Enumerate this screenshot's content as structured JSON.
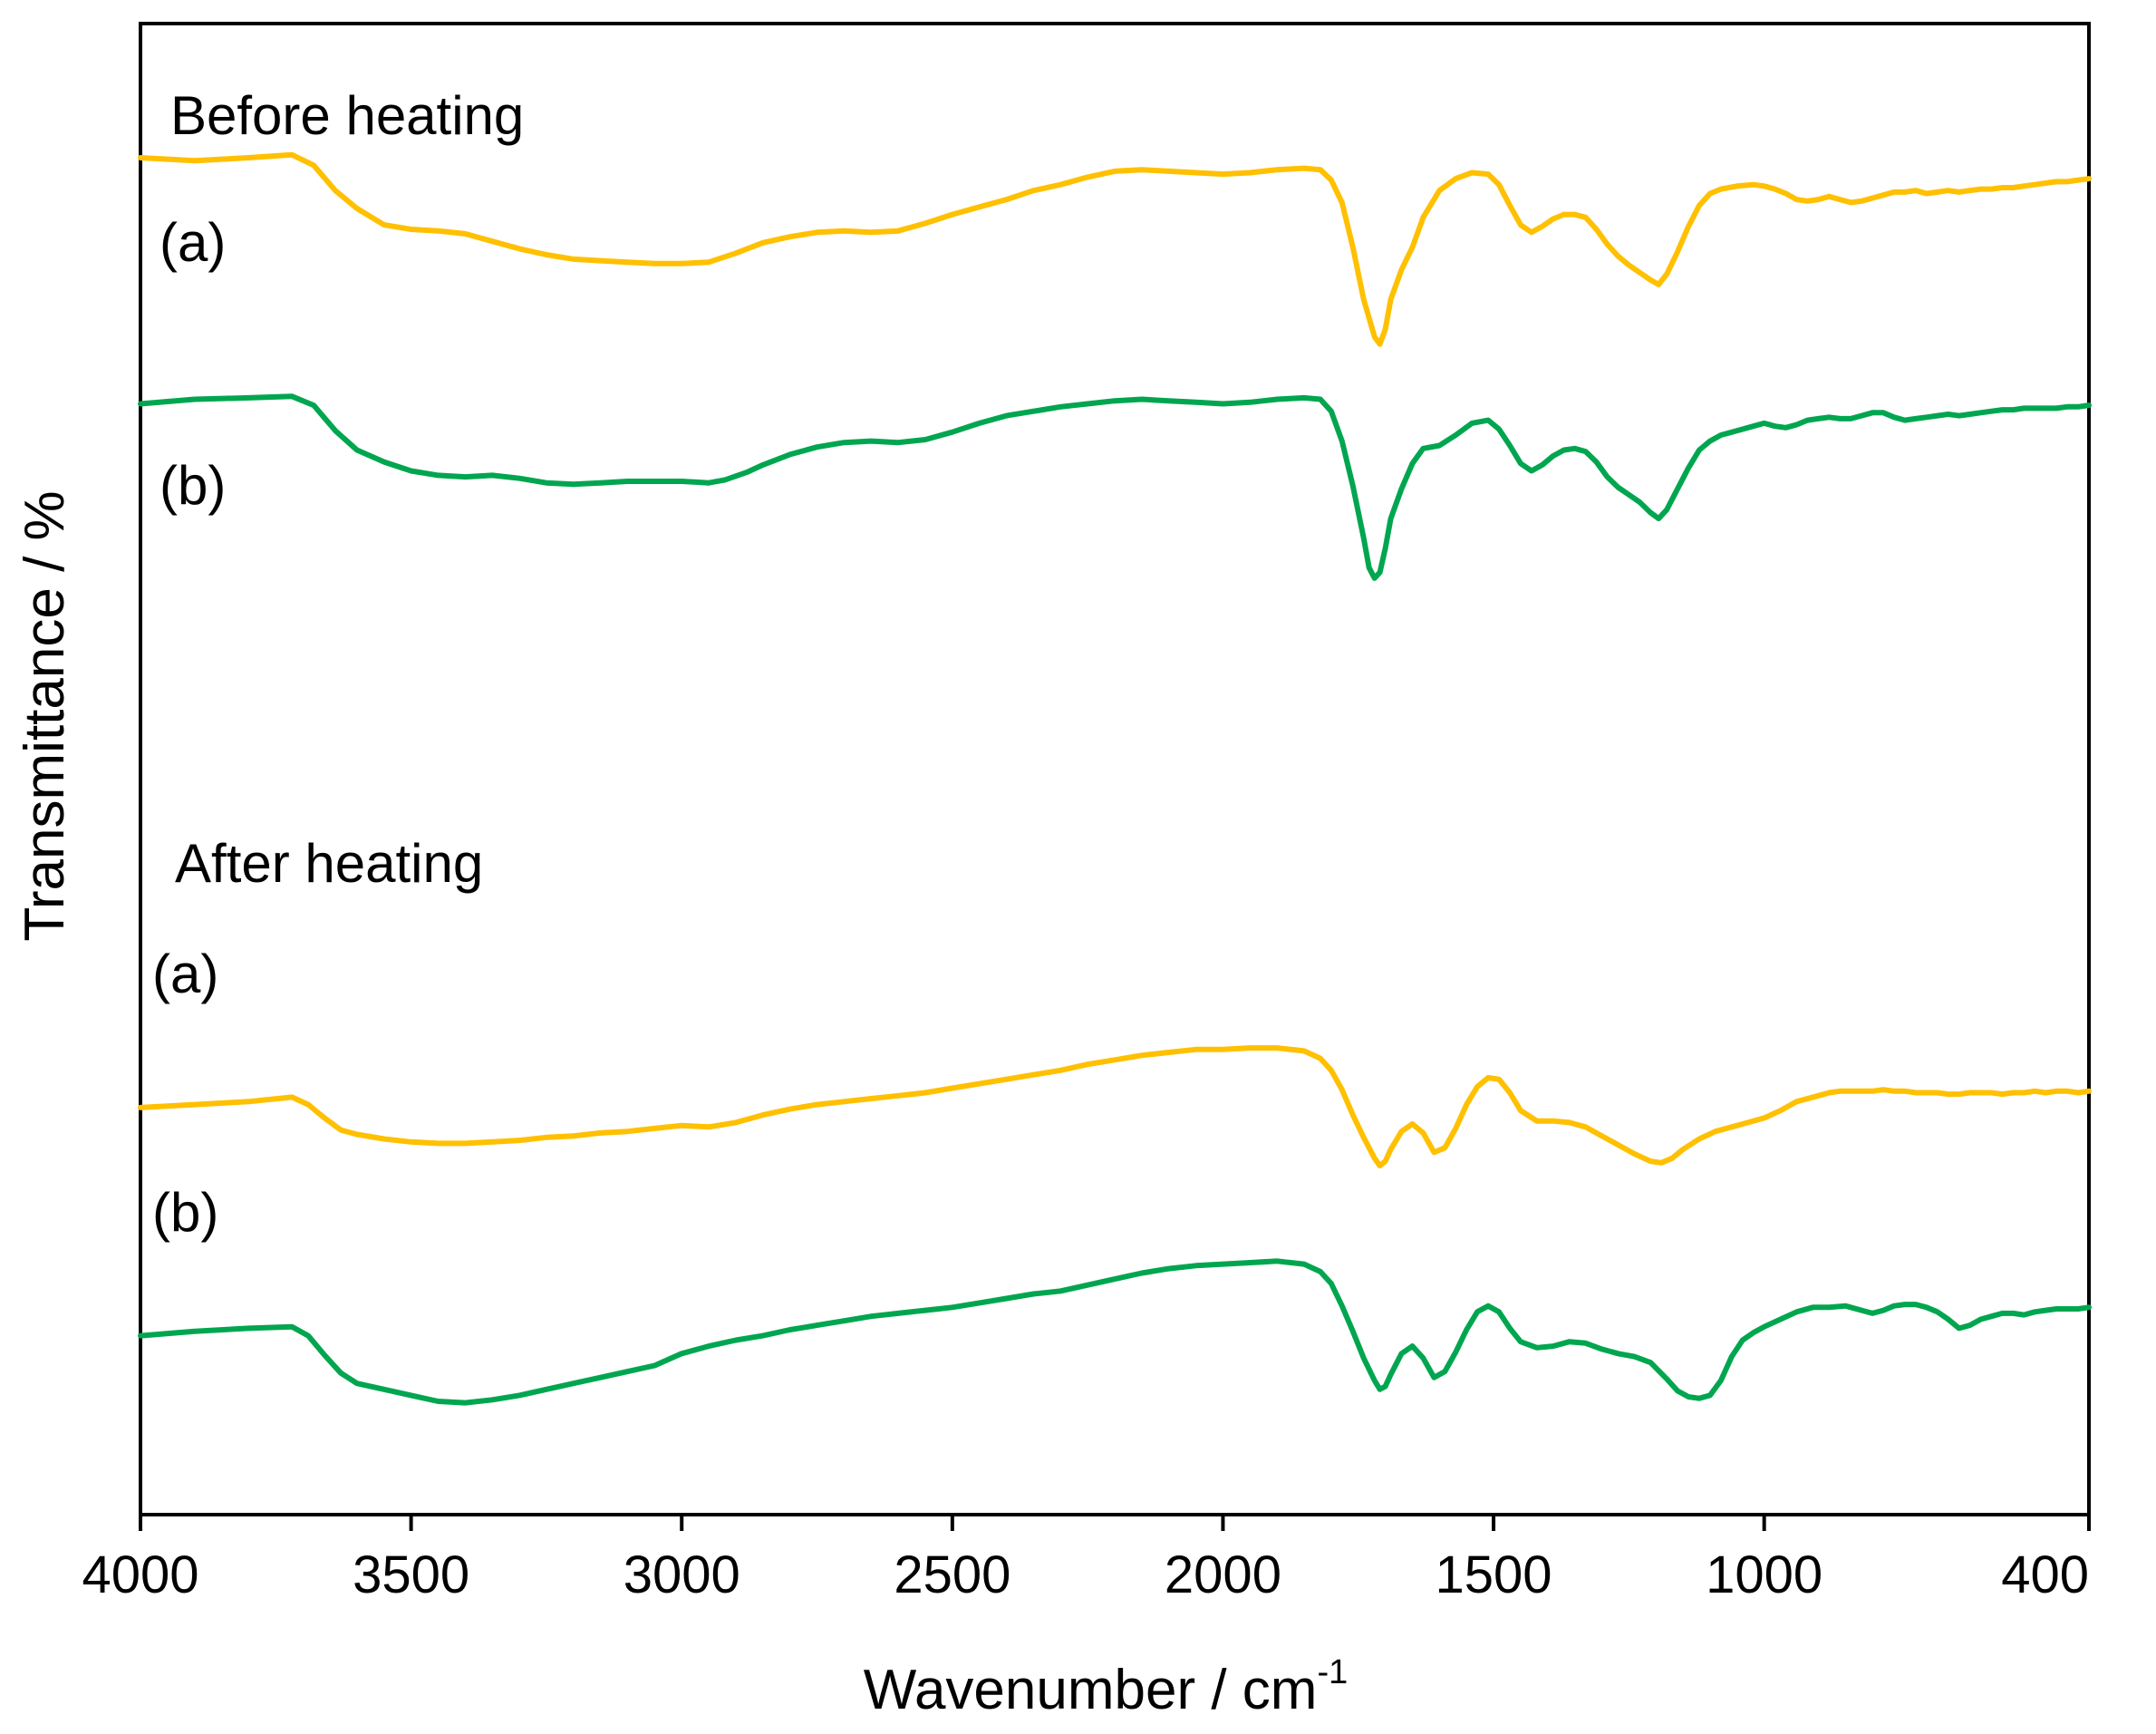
{
  "chart_data": {
    "type": "line",
    "title": "",
    "xlabel": "Wavenumber / cm",
    "xlabel_superscript": "-1",
    "ylabel": "Transmittance / %",
    "xlim": [
      4000,
      400
    ],
    "ylim": [
      0,
      100
    ],
    "x_ticks": [
      4000,
      3500,
      3000,
      2500,
      2000,
      1500,
      1000,
      400
    ],
    "x_tick_labels": [
      "4000",
      "3500",
      "3000",
      "2500",
      "2000",
      "1500",
      "1000",
      "400"
    ],
    "grid": false,
    "legend": "none",
    "annotations": {
      "before_heading": "Before heating",
      "after_heading": "After heating",
      "before_a": "(a)",
      "before_b": "(b)",
      "after_a": "(a)",
      "after_b": "(b)"
    },
    "series": [
      {
        "name": "Before heating (a)",
        "color": "#FFC000",
        "x": [
          4000,
          3900,
          3800,
          3720,
          3680,
          3640,
          3600,
          3550,
          3500,
          3450,
          3400,
          3350,
          3300,
          3250,
          3200,
          3150,
          3100,
          3050,
          3000,
          2950,
          2900,
          2850,
          2800,
          2750,
          2700,
          2650,
          2600,
          2550,
          2500,
          2450,
          2400,
          2350,
          2300,
          2250,
          2200,
          2150,
          2100,
          2050,
          2000,
          1950,
          1900,
          1850,
          1820,
          1800,
          1780,
          1760,
          1740,
          1720,
          1710,
          1700,
          1690,
          1670,
          1650,
          1630,
          1600,
          1570,
          1540,
          1510,
          1490,
          1470,
          1450,
          1430,
          1410,
          1390,
          1370,
          1350,
          1330,
          1310,
          1290,
          1270,
          1250,
          1230,
          1210,
          1195,
          1180,
          1160,
          1140,
          1120,
          1100,
          1080,
          1050,
          1020,
          1000,
          980,
          960,
          940,
          920,
          900,
          880,
          860,
          840,
          820,
          800,
          780,
          760,
          740,
          720,
          700,
          680,
          660,
          640,
          620,
          600,
          580,
          560,
          540,
          520,
          500,
          480,
          460,
          440,
          420,
          400
        ],
        "y": [
          91.0,
          90.8,
          91.0,
          91.2,
          90.5,
          88.8,
          87.6,
          86.5,
          86.2,
          86.1,
          85.9,
          85.4,
          84.9,
          84.5,
          84.2,
          84.1,
          84.0,
          83.9,
          83.9,
          84.0,
          84.6,
          85.3,
          85.7,
          86.0,
          86.1,
          86.0,
          86.1,
          86.6,
          87.2,
          87.7,
          88.2,
          88.8,
          89.2,
          89.7,
          90.1,
          90.2,
          90.1,
          90.0,
          89.9,
          90.0,
          90.2,
          90.3,
          90.2,
          89.5,
          88.0,
          85.0,
          81.5,
          79.0,
          78.5,
          79.5,
          81.5,
          83.5,
          85.0,
          87.0,
          88.8,
          89.6,
          90.0,
          89.9,
          89.2,
          87.8,
          86.5,
          86.0,
          86.4,
          86.9,
          87.2,
          87.2,
          87.0,
          86.2,
          85.2,
          84.4,
          83.8,
          83.3,
          82.8,
          82.5,
          83.2,
          84.7,
          86.4,
          87.8,
          88.6,
          88.9,
          89.1,
          89.2,
          89.1,
          88.9,
          88.6,
          88.2,
          88.1,
          88.2,
          88.4,
          88.2,
          88.0,
          88.1,
          88.3,
          88.5,
          88.7,
          88.7,
          88.8,
          88.6,
          88.7,
          88.8,
          88.7,
          88.8,
          88.9,
          88.9,
          89.0,
          89.0,
          89.1,
          89.2,
          89.3,
          89.4,
          89.4,
          89.5,
          89.6
        ]
      },
      {
        "name": "Before heating (b)",
        "color": "#00A64F",
        "x": [
          4000,
          3900,
          3800,
          3720,
          3680,
          3640,
          3600,
          3550,
          3500,
          3450,
          3400,
          3350,
          3300,
          3250,
          3200,
          3150,
          3100,
          3050,
          3000,
          2950,
          2920,
          2880,
          2850,
          2800,
          2750,
          2700,
          2650,
          2600,
          2550,
          2500,
          2450,
          2400,
          2350,
          2300,
          2250,
          2200,
          2150,
          2100,
          2050,
          2000,
          1950,
          1900,
          1850,
          1820,
          1800,
          1780,
          1760,
          1740,
          1730,
          1720,
          1710,
          1700,
          1690,
          1670,
          1650,
          1630,
          1600,
          1570,
          1540,
          1510,
          1490,
          1470,
          1450,
          1430,
          1410,
          1390,
          1370,
          1350,
          1330,
          1310,
          1290,
          1270,
          1250,
          1230,
          1210,
          1195,
          1180,
          1160,
          1140,
          1120,
          1100,
          1080,
          1050,
          1020,
          1000,
          980,
          960,
          940,
          920,
          900,
          880,
          860,
          840,
          820,
          800,
          780,
          760,
          740,
          720,
          700,
          680,
          660,
          640,
          620,
          600,
          580,
          560,
          540,
          520,
          500,
          480,
          460,
          440,
          420,
          400
        ],
        "y": [
          74.5,
          74.8,
          74.9,
          75.0,
          74.4,
          72.7,
          71.4,
          70.6,
          70.0,
          69.7,
          69.6,
          69.7,
          69.5,
          69.2,
          69.1,
          69.2,
          69.3,
          69.3,
          69.3,
          69.2,
          69.4,
          69.9,
          70.4,
          71.1,
          71.6,
          71.9,
          72.0,
          71.9,
          72.1,
          72.6,
          73.2,
          73.7,
          74.0,
          74.3,
          74.5,
          74.7,
          74.8,
          74.7,
          74.6,
          74.5,
          74.6,
          74.8,
          74.9,
          74.8,
          74.0,
          72.0,
          69.0,
          65.5,
          63.5,
          62.8,
          63.2,
          64.8,
          66.8,
          68.8,
          70.5,
          71.5,
          71.7,
          72.4,
          73.2,
          73.4,
          72.8,
          71.7,
          70.5,
          70.0,
          70.4,
          71.0,
          71.4,
          71.5,
          71.3,
          70.6,
          69.6,
          68.9,
          68.4,
          67.9,
          67.2,
          66.8,
          67.4,
          68.8,
          70.2,
          71.4,
          72.0,
          72.4,
          72.7,
          73.0,
          73.2,
          73.0,
          72.9,
          73.1,
          73.4,
          73.5,
          73.6,
          73.5,
          73.5,
          73.7,
          73.9,
          73.9,
          73.6,
          73.4,
          73.5,
          73.6,
          73.7,
          73.8,
          73.7,
          73.8,
          73.9,
          74.0,
          74.1,
          74.1,
          74.2,
          74.2,
          74.2,
          74.2,
          74.3,
          74.3,
          74.4
        ]
      },
      {
        "name": "After heating (a)",
        "color": "#FFC000",
        "x": [
          4000,
          3900,
          3800,
          3720,
          3690,
          3660,
          3630,
          3600,
          3550,
          3500,
          3450,
          3400,
          3350,
          3300,
          3250,
          3200,
          3150,
          3100,
          3050,
          3000,
          2950,
          2900,
          2850,
          2800,
          2750,
          2700,
          2650,
          2600,
          2550,
          2500,
          2450,
          2400,
          2350,
          2300,
          2250,
          2200,
          2150,
          2100,
          2050,
          2000,
          1950,
          1900,
          1850,
          1820,
          1800,
          1780,
          1760,
          1740,
          1720,
          1710,
          1700,
          1690,
          1670,
          1650,
          1630,
          1610,
          1590,
          1570,
          1550,
          1530,
          1510,
          1490,
          1470,
          1450,
          1420,
          1390,
          1360,
          1330,
          1300,
          1270,
          1240,
          1210,
          1190,
          1170,
          1150,
          1120,
          1090,
          1060,
          1030,
          1000,
          970,
          940,
          900,
          880,
          860,
          840,
          820,
          800,
          780,
          760,
          740,
          720,
          700,
          680,
          660,
          640,
          620,
          600,
          580,
          560,
          540,
          520,
          500,
          480,
          460,
          440,
          420,
          400
        ],
        "y": [
          27.3,
          27.5,
          27.7,
          28.0,
          27.5,
          26.6,
          25.8,
          25.5,
          25.2,
          25.0,
          24.9,
          24.9,
          25.0,
          25.1,
          25.3,
          25.4,
          25.6,
          25.7,
          25.9,
          26.1,
          26.0,
          26.3,
          26.8,
          27.2,
          27.5,
          27.7,
          27.9,
          28.1,
          28.3,
          28.6,
          28.9,
          29.2,
          29.5,
          29.8,
          30.2,
          30.5,
          30.8,
          31.0,
          31.2,
          31.2,
          31.3,
          31.3,
          31.1,
          30.6,
          29.8,
          28.5,
          26.8,
          25.3,
          23.9,
          23.4,
          23.7,
          24.5,
          25.7,
          26.2,
          25.6,
          24.3,
          24.6,
          25.9,
          27.5,
          28.7,
          29.3,
          29.2,
          28.3,
          27.1,
          26.4,
          26.4,
          26.3,
          26.0,
          25.4,
          24.8,
          24.2,
          23.7,
          23.6,
          23.9,
          24.5,
          25.2,
          25.7,
          26.0,
          26.3,
          26.6,
          27.1,
          27.7,
          28.1,
          28.3,
          28.4,
          28.4,
          28.4,
          28.4,
          28.5,
          28.4,
          28.4,
          28.3,
          28.3,
          28.3,
          28.2,
          28.2,
          28.3,
          28.3,
          28.3,
          28.2,
          28.3,
          28.3,
          28.4,
          28.3,
          28.4,
          28.4,
          28.3,
          28.4
        ]
      },
      {
        "name": "After heating (b)",
        "color": "#00A64F",
        "x": [
          4000,
          3900,
          3800,
          3720,
          3690,
          3660,
          3630,
          3600,
          3550,
          3500,
          3450,
          3400,
          3350,
          3300,
          3250,
          3200,
          3150,
          3100,
          3050,
          3000,
          2950,
          2900,
          2850,
          2800,
          2750,
          2700,
          2650,
          2600,
          2550,
          2500,
          2450,
          2400,
          2350,
          2300,
          2250,
          2200,
          2150,
          2100,
          2050,
          2000,
          1950,
          1900,
          1850,
          1820,
          1800,
          1780,
          1760,
          1740,
          1720,
          1710,
          1700,
          1690,
          1670,
          1650,
          1630,
          1610,
          1590,
          1570,
          1550,
          1530,
          1510,
          1490,
          1470,
          1450,
          1420,
          1390,
          1360,
          1330,
          1300,
          1270,
          1240,
          1210,
          1180,
          1160,
          1140,
          1120,
          1100,
          1080,
          1060,
          1040,
          1020,
          1000,
          970,
          940,
          910,
          880,
          850,
          820,
          800,
          780,
          760,
          740,
          720,
          700,
          680,
          660,
          640,
          620,
          600,
          580,
          560,
          540,
          520,
          500,
          480,
          460,
          440,
          420,
          400
        ],
        "y": [
          12.0,
          12.3,
          12.5,
          12.6,
          12.0,
          10.7,
          9.5,
          8.8,
          8.4,
          8.0,
          7.6,
          7.5,
          7.7,
          8.0,
          8.4,
          8.8,
          9.2,
          9.6,
          10.0,
          10.8,
          11.3,
          11.7,
          12.0,
          12.4,
          12.7,
          13.0,
          13.3,
          13.5,
          13.7,
          13.9,
          14.2,
          14.5,
          14.8,
          15.0,
          15.4,
          15.8,
          16.2,
          16.5,
          16.7,
          16.8,
          16.9,
          17.0,
          16.8,
          16.3,
          15.5,
          14.0,
          12.3,
          10.5,
          9.0,
          8.4,
          8.6,
          9.4,
          10.8,
          11.3,
          10.5,
          9.2,
          9.6,
          10.9,
          12.4,
          13.6,
          14.0,
          13.6,
          12.5,
          11.6,
          11.2,
          11.3,
          11.6,
          11.5,
          11.1,
          10.8,
          10.6,
          10.2,
          9.1,
          8.3,
          7.9,
          7.8,
          8.0,
          9.0,
          10.6,
          11.7,
          12.2,
          12.6,
          13.1,
          13.6,
          13.9,
          13.9,
          14.0,
          13.7,
          13.5,
          13.7,
          14.0,
          14.1,
          14.1,
          13.9,
          13.6,
          13.1,
          12.5,
          12.7,
          13.1,
          13.3,
          13.5,
          13.5,
          13.4,
          13.6,
          13.7,
          13.8,
          13.8,
          13.8,
          13.9
        ]
      }
    ]
  }
}
